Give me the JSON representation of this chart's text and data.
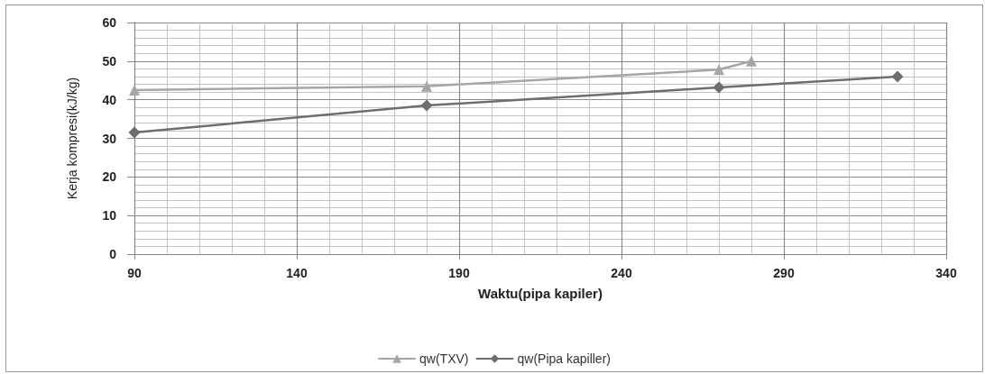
{
  "chart_data": {
    "type": "line",
    "xlabel": "Waktu(pipa kapiler)",
    "ylabel": "Kerja kompresi(kJ/kg)",
    "xlim": [
      90,
      340
    ],
    "xticks": [
      90,
      140,
      190,
      240,
      290,
      340
    ],
    "ylim": [
      0,
      60
    ],
    "yticks": [
      0,
      10,
      20,
      30,
      40,
      50,
      60
    ],
    "grid": true,
    "legend": "bottom",
    "line_style": "solid",
    "series": [
      {
        "name": "qw(TXV)",
        "color": "#a6a6a6",
        "marker": "triangle",
        "x": [
          90,
          180,
          270,
          280
        ],
        "values": [
          42.5,
          43.5,
          47.8,
          50
        ]
      },
      {
        "name": "qw(Pipa kapiller)",
        "color": "#6e6e6e",
        "marker": "diamond",
        "x": [
          90,
          180,
          270,
          325
        ],
        "values": [
          31.5,
          38.5,
          43.2,
          46
        ]
      }
    ]
  }
}
